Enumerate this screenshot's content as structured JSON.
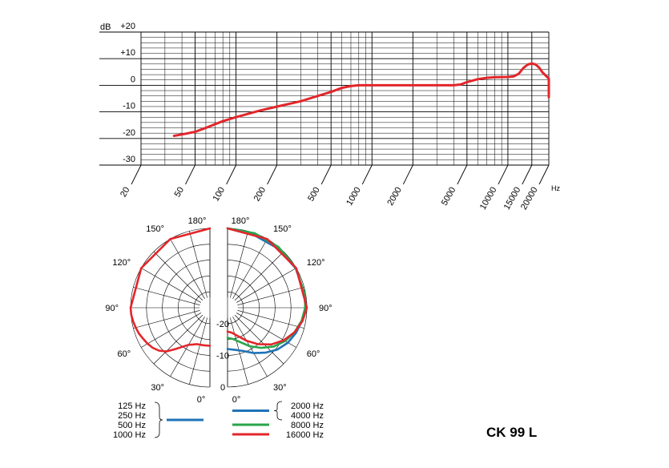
{
  "colors": {
    "red": "#e3262b",
    "blue": "#1f73b7",
    "green": "#2aa64a",
    "grid": "#000000"
  },
  "model_name": "CK 99 L",
  "chart_data": [
    {
      "type": "line",
      "y_unit": "dB",
      "x_unit": "Hz",
      "x_scale": "log",
      "xlim": [
        20,
        20000
      ],
      "ylim": [
        -30,
        20
      ],
      "y_ticks": [
        {
          "value": 20,
          "label": "+20"
        },
        {
          "value": 10,
          "label": "+10"
        },
        {
          "value": 0,
          "label": "0"
        },
        {
          "value": -10,
          "label": "-10"
        },
        {
          "value": -20,
          "label": "-20"
        },
        {
          "value": -30,
          "label": "-30"
        }
      ],
      "x_ticks": [
        {
          "value": 20,
          "label": "20"
        },
        {
          "value": 50,
          "label": "50"
        },
        {
          "value": 100,
          "label": "100"
        },
        {
          "value": 200,
          "label": "200"
        },
        {
          "value": 500,
          "label": "500"
        },
        {
          "value": 1000,
          "label": "1000"
        },
        {
          "value": 2000,
          "label": "2000"
        },
        {
          "value": 5000,
          "label": "5000"
        },
        {
          "value": 10000,
          "label": "10000"
        },
        {
          "value": 15000,
          "label": "15000"
        },
        {
          "value": 20000,
          "label": "20000"
        }
      ],
      "grid": true,
      "series": [
        {
          "color": "#e3262b",
          "points": [
            [
              35,
              -19
            ],
            [
              40,
              -18.5
            ],
            [
              50,
              -17.5
            ],
            [
              60,
              -16
            ],
            [
              80,
              -13.5
            ],
            [
              100,
              -12
            ],
            [
              150,
              -9.5
            ],
            [
              200,
              -8
            ],
            [
              300,
              -6
            ],
            [
              400,
              -4
            ],
            [
              500,
              -2.5
            ],
            [
              600,
              -1
            ],
            [
              700,
              -0.3
            ],
            [
              800,
              0
            ],
            [
              1000,
              0
            ],
            [
              2000,
              0
            ],
            [
              3000,
              0
            ],
            [
              4000,
              0
            ],
            [
              4500,
              0.3
            ],
            [
              5000,
              1.2
            ],
            [
              6000,
              2.3
            ],
            [
              7000,
              2.8
            ],
            [
              8000,
              3
            ],
            [
              10000,
              3.1
            ],
            [
              11000,
              3.3
            ],
            [
              12000,
              4.3
            ],
            [
              13000,
              6.5
            ],
            [
              14000,
              7.8
            ],
            [
              15000,
              8.2
            ],
            [
              16000,
              7.8
            ],
            [
              17000,
              6.6
            ],
            [
              18000,
              4.8
            ],
            [
              20000,
              2.5
            ],
            [
              22000,
              0
            ],
            [
              25000,
              -2
            ],
            [
              28000,
              -4.5
            ]
          ]
        }
      ]
    },
    {
      "type": "polar",
      "angle_labels": [
        "180°",
        "150°",
        "120°",
        "90°",
        "60°",
        "30°",
        "0°"
      ],
      "ring_labels": [
        "-20",
        "-10",
        "0"
      ],
      "rlim": [
        -25,
        0
      ],
      "legend_left": {
        "labels": [
          "125 Hz",
          "250 Hz",
          "500 Hz",
          "1000 Hz"
        ],
        "color": "#1f73b7"
      },
      "legend_right": [
        {
          "labels": [
            "2000 Hz",
            "4000 Hz"
          ],
          "color": "#1f73b7"
        },
        {
          "labels": [
            "8000 Hz"
          ],
          "color": "#2aa64a"
        },
        {
          "labels": [
            "16000 Hz"
          ],
          "color": "#e3262b"
        }
      ],
      "series": [
        {
          "name": "125 Hz",
          "color": "#e3262b",
          "side": "left",
          "points": [
            [
              0,
              -13
            ],
            [
              10,
              -13
            ],
            [
              20,
              -12.8
            ],
            [
              25,
              -12.2
            ],
            [
              30,
              -11.5
            ],
            [
              35,
              -10
            ],
            [
              40,
              -8
            ],
            [
              45,
              -5.5
            ],
            [
              50,
              -4
            ],
            [
              55,
              -3
            ],
            [
              60,
              -2.3
            ],
            [
              65,
              -1.8
            ],
            [
              70,
              -1.2
            ],
            [
              75,
              -0.8
            ],
            [
              80,
              -0.4
            ],
            [
              85,
              -0.1
            ],
            [
              90,
              0
            ],
            [
              120,
              0
            ],
            [
              150,
              0
            ],
            [
              180,
              0
            ]
          ]
        },
        {
          "name": "2000 Hz",
          "color": "#1f73b7",
          "side": "right",
          "points": [
            [
              0,
              -12
            ],
            [
              10,
              -11.5
            ],
            [
              20,
              -10.5
            ],
            [
              30,
              -8.5
            ],
            [
              40,
              -6.5
            ],
            [
              50,
              -4.5
            ],
            [
              60,
              -3
            ],
            [
              70,
              -2
            ],
            [
              80,
              -1.2
            ],
            [
              90,
              -0.5
            ],
            [
              100,
              -0.3
            ],
            [
              120,
              -0.2
            ],
            [
              140,
              -0.5
            ],
            [
              160,
              -0.6
            ],
            [
              170,
              -0.3
            ],
            [
              180,
              0
            ]
          ]
        },
        {
          "name": "8000 Hz",
          "color": "#2aa64a",
          "side": "right",
          "points": [
            [
              0,
              -15.5
            ],
            [
              10,
              -15
            ],
            [
              20,
              -13.5
            ],
            [
              30,
              -11
            ],
            [
              40,
              -8.5
            ],
            [
              50,
              -6
            ],
            [
              60,
              -4
            ],
            [
              70,
              -2.5
            ],
            [
              80,
              -1.3
            ],
            [
              90,
              -0.5
            ],
            [
              100,
              -0.3
            ],
            [
              120,
              -0.1
            ],
            [
              140,
              0
            ],
            [
              160,
              0
            ],
            [
              180,
              0
            ]
          ]
        },
        {
          "name": "16000 Hz",
          "color": "#e3262b",
          "side": "right",
          "points": [
            [
              0,
              -17.5
            ],
            [
              10,
              -17
            ],
            [
              20,
              -15.5
            ],
            [
              30,
              -13
            ],
            [
              40,
              -10
            ],
            [
              50,
              -7
            ],
            [
              60,
              -4.5
            ],
            [
              70,
              -2.5
            ],
            [
              80,
              -1
            ],
            [
              90,
              0
            ],
            [
              120,
              0
            ],
            [
              150,
              0
            ],
            [
              180,
              0
            ]
          ]
        }
      ]
    }
  ]
}
